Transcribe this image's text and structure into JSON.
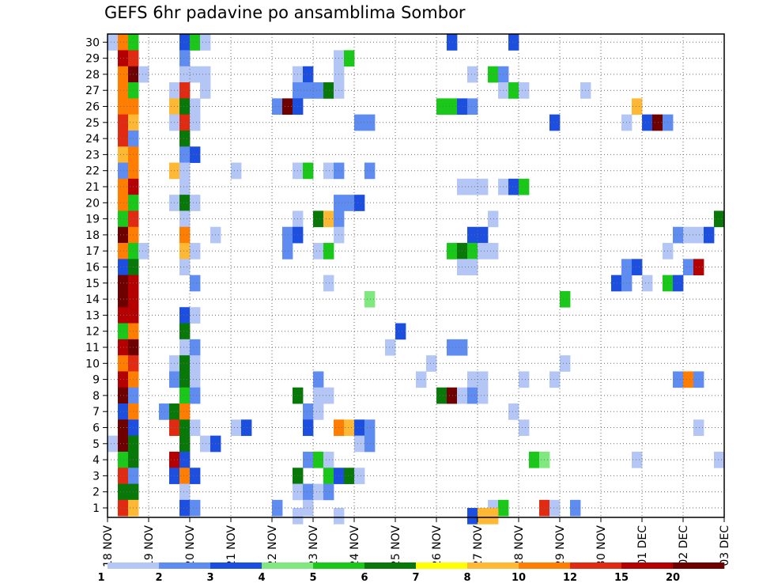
{
  "chart_data": {
    "type": "heatmap",
    "title": "GEFS 6hr padavine po ansamblima Sombor",
    "x_tick_labels": [
      "18 NOV",
      "19 NOV",
      "20 NOV",
      "21 NOV",
      "22 NOV",
      "23 NOV",
      "24 NOV",
      "25 NOV",
      "26 NOV",
      "27 NOV",
      "28 NOV",
      "29 NOV",
      "30 NOV",
      "01 DEC",
      "02 DEC",
      "03 DEC"
    ],
    "y_tick_labels": [
      "1",
      "2",
      "3",
      "4",
      "5",
      "6",
      "7",
      "8",
      "9",
      "10",
      "11",
      "12",
      "13",
      "14",
      "15",
      "16",
      "17",
      "18",
      "19",
      "20",
      "21",
      "22",
      "23",
      "24",
      "25",
      "26",
      "27",
      "28",
      "29",
      "30"
    ],
    "xlim": [
      0,
      60
    ],
    "ylim": [
      0,
      30
    ],
    "grid": true,
    "color_scale": {
      "labels": [
        "1",
        "2",
        "3",
        "4",
        "5",
        "6",
        "7",
        "8",
        "10",
        "12",
        "15",
        "20"
      ],
      "colors": [
        "#b3c6f5",
        "#5f8cf0",
        "#1c4fe0",
        "#7fe87f",
        "#19c819",
        "#087808",
        "#ffff00",
        "#ffb833",
        "#ff7d00",
        "#e02a12",
        "#b40000",
        "#6e0000"
      ]
    },
    "cells": [
      [
        0,
        30,
        1
      ],
      [
        1,
        30,
        10
      ],
      [
        2,
        30,
        5
      ],
      [
        7,
        30,
        3
      ],
      [
        8,
        30,
        5
      ],
      [
        9,
        30,
        1
      ],
      [
        33,
        30,
        3
      ],
      [
        39,
        30,
        3
      ],
      [
        1,
        29,
        15
      ],
      [
        2,
        29,
        12
      ],
      [
        7,
        29,
        2
      ],
      [
        22,
        29,
        1
      ],
      [
        23,
        29,
        5
      ],
      [
        1,
        28,
        10
      ],
      [
        2,
        28,
        20
      ],
      [
        3,
        28,
        1
      ],
      [
        7,
        28,
        1
      ],
      [
        8,
        28,
        1
      ],
      [
        9,
        28,
        1
      ],
      [
        18,
        28,
        1
      ],
      [
        19,
        28,
        3
      ],
      [
        22,
        28,
        1
      ],
      [
        35,
        28,
        1
      ],
      [
        37,
        28,
        5
      ],
      [
        38,
        28,
        2
      ],
      [
        1,
        27,
        10
      ],
      [
        2,
        27,
        5
      ],
      [
        6,
        27,
        1
      ],
      [
        7,
        27,
        12
      ],
      [
        9,
        27,
        1
      ],
      [
        18,
        27,
        2
      ],
      [
        19,
        27,
        2
      ],
      [
        20,
        27,
        2
      ],
      [
        21,
        27,
        6
      ],
      [
        22,
        27,
        1
      ],
      [
        38,
        27,
        1
      ],
      [
        39,
        27,
        5
      ],
      [
        40,
        27,
        1
      ],
      [
        46,
        27,
        1
      ],
      [
        1,
        26,
        10
      ],
      [
        2,
        26,
        10
      ],
      [
        6,
        26,
        8
      ],
      [
        7,
        26,
        6
      ],
      [
        8,
        26,
        1
      ],
      [
        16,
        26,
        2
      ],
      [
        17,
        26,
        20
      ],
      [
        18,
        26,
        3
      ],
      [
        32,
        26,
        5
      ],
      [
        33,
        26,
        5
      ],
      [
        34,
        26,
        3
      ],
      [
        35,
        26,
        2
      ],
      [
        51,
        26,
        8
      ],
      [
        1,
        25,
        12
      ],
      [
        2,
        25,
        8
      ],
      [
        6,
        25,
        1
      ],
      [
        7,
        25,
        12
      ],
      [
        8,
        25,
        1
      ],
      [
        24,
        25,
        2
      ],
      [
        25,
        25,
        2
      ],
      [
        43,
        25,
        3
      ],
      [
        50,
        25,
        1
      ],
      [
        52,
        25,
        3
      ],
      [
        53,
        25,
        20
      ],
      [
        54,
        25,
        2
      ],
      [
        1,
        24,
        12
      ],
      [
        2,
        24,
        2
      ],
      [
        7,
        24,
        6
      ],
      [
        1,
        23,
        8
      ],
      [
        2,
        23,
        10
      ],
      [
        7,
        23,
        2
      ],
      [
        8,
        23,
        3
      ],
      [
        1,
        22,
        2
      ],
      [
        2,
        22,
        10
      ],
      [
        6,
        22,
        8
      ],
      [
        7,
        22,
        1
      ],
      [
        12,
        22,
        1
      ],
      [
        18,
        22,
        1
      ],
      [
        19,
        22,
        5
      ],
      [
        21,
        22,
        1
      ],
      [
        22,
        22,
        2
      ],
      [
        25,
        22,
        2
      ],
      [
        1,
        21,
        10
      ],
      [
        2,
        21,
        15
      ],
      [
        7,
        21,
        1
      ],
      [
        34,
        21,
        1
      ],
      [
        35,
        21,
        1
      ],
      [
        36,
        21,
        1
      ],
      [
        38,
        21,
        1
      ],
      [
        39,
        21,
        3
      ],
      [
        40,
        21,
        5
      ],
      [
        1,
        20,
        10
      ],
      [
        2,
        20,
        5
      ],
      [
        6,
        20,
        1
      ],
      [
        7,
        20,
        6
      ],
      [
        8,
        20,
        1
      ],
      [
        22,
        20,
        2
      ],
      [
        23,
        20,
        2
      ],
      [
        24,
        20,
        3
      ],
      [
        1,
        19,
        5
      ],
      [
        2,
        19,
        12
      ],
      [
        7,
        19,
        1
      ],
      [
        18,
        19,
        1
      ],
      [
        20,
        19,
        6
      ],
      [
        21,
        19,
        8
      ],
      [
        22,
        19,
        2
      ],
      [
        37,
        19,
        1
      ],
      [
        59,
        19,
        6
      ],
      [
        1,
        18,
        20
      ],
      [
        2,
        18,
        10
      ],
      [
        7,
        18,
        10
      ],
      [
        10,
        18,
        1
      ],
      [
        17,
        18,
        2
      ],
      [
        18,
        18,
        3
      ],
      [
        22,
        18,
        1
      ],
      [
        35,
        18,
        3
      ],
      [
        36,
        18,
        3
      ],
      [
        55,
        18,
        2
      ],
      [
        56,
        18,
        1
      ],
      [
        57,
        18,
        1
      ],
      [
        58,
        18,
        3
      ],
      [
        1,
        17,
        10
      ],
      [
        2,
        17,
        5
      ],
      [
        3,
        17,
        1
      ],
      [
        7,
        17,
        8
      ],
      [
        8,
        17,
        1
      ],
      [
        17,
        17,
        2
      ],
      [
        20,
        17,
        1
      ],
      [
        21,
        17,
        5
      ],
      [
        33,
        17,
        5
      ],
      [
        34,
        17,
        6
      ],
      [
        35,
        17,
        5
      ],
      [
        36,
        17,
        1
      ],
      [
        37,
        17,
        1
      ],
      [
        54,
        17,
        1
      ],
      [
        1,
        16,
        3
      ],
      [
        2,
        16,
        6
      ],
      [
        7,
        16,
        1
      ],
      [
        34,
        16,
        1
      ],
      [
        35,
        16,
        1
      ],
      [
        50,
        16,
        2
      ],
      [
        51,
        16,
        3
      ],
      [
        56,
        16,
        2
      ],
      [
        57,
        16,
        15
      ],
      [
        1,
        15,
        20
      ],
      [
        2,
        15,
        15
      ],
      [
        8,
        15,
        2
      ],
      [
        21,
        15,
        1
      ],
      [
        49,
        15,
        3
      ],
      [
        50,
        15,
        2
      ],
      [
        52,
        15,
        1
      ],
      [
        54,
        15,
        5
      ],
      [
        55,
        15,
        3
      ],
      [
        1,
        14,
        20
      ],
      [
        2,
        14,
        15
      ],
      [
        25,
        14,
        4
      ],
      [
        44,
        14,
        5
      ],
      [
        1,
        13,
        15
      ],
      [
        2,
        13,
        15
      ],
      [
        7,
        13,
        3
      ],
      [
        8,
        13,
        1
      ],
      [
        1,
        12,
        5
      ],
      [
        2,
        12,
        10
      ],
      [
        7,
        12,
        6
      ],
      [
        28,
        12,
        3
      ],
      [
        1,
        11,
        15
      ],
      [
        2,
        11,
        20
      ],
      [
        7,
        11,
        1
      ],
      [
        8,
        11,
        2
      ],
      [
        27,
        11,
        1
      ],
      [
        33,
        11,
        2
      ],
      [
        34,
        11,
        2
      ],
      [
        1,
        10,
        10
      ],
      [
        2,
        10,
        12
      ],
      [
        6,
        10,
        1
      ],
      [
        7,
        10,
        6
      ],
      [
        8,
        10,
        1
      ],
      [
        31,
        10,
        1
      ],
      [
        44,
        10,
        1
      ],
      [
        1,
        9,
        15
      ],
      [
        2,
        9,
        10
      ],
      [
        6,
        9,
        2
      ],
      [
        7,
        9,
        6
      ],
      [
        8,
        9,
        1
      ],
      [
        20,
        9,
        2
      ],
      [
        30,
        9,
        1
      ],
      [
        35,
        9,
        1
      ],
      [
        36,
        9,
        1
      ],
      [
        40,
        9,
        1
      ],
      [
        43,
        9,
        1
      ],
      [
        55,
        9,
        2
      ],
      [
        56,
        9,
        10
      ],
      [
        57,
        9,
        2
      ],
      [
        1,
        8,
        20
      ],
      [
        2,
        8,
        2
      ],
      [
        7,
        8,
        5
      ],
      [
        8,
        8,
        2
      ],
      [
        18,
        8,
        6
      ],
      [
        20,
        8,
        1
      ],
      [
        21,
        8,
        1
      ],
      [
        32,
        8,
        6
      ],
      [
        33,
        8,
        20
      ],
      [
        34,
        8,
        1
      ],
      [
        35,
        8,
        2
      ],
      [
        36,
        8,
        1
      ],
      [
        1,
        7,
        3
      ],
      [
        2,
        7,
        10
      ],
      [
        5,
        7,
        2
      ],
      [
        6,
        7,
        6
      ],
      [
        7,
        7,
        10
      ],
      [
        19,
        7,
        2
      ],
      [
        20,
        7,
        1
      ],
      [
        39,
        7,
        1
      ],
      [
        1,
        6,
        20
      ],
      [
        2,
        6,
        3
      ],
      [
        6,
        6,
        12
      ],
      [
        7,
        6,
        6
      ],
      [
        8,
        6,
        1
      ],
      [
        12,
        6,
        1
      ],
      [
        13,
        6,
        3
      ],
      [
        19,
        6,
        3
      ],
      [
        22,
        6,
        10
      ],
      [
        23,
        6,
        8
      ],
      [
        24,
        6,
        3
      ],
      [
        25,
        6,
        2
      ],
      [
        40,
        6,
        1
      ],
      [
        57,
        6,
        1
      ],
      [
        0,
        5,
        1
      ],
      [
        1,
        5,
        20
      ],
      [
        2,
        5,
        6
      ],
      [
        7,
        5,
        6
      ],
      [
        9,
        5,
        1
      ],
      [
        10,
        5,
        3
      ],
      [
        24,
        5,
        1
      ],
      [
        25,
        5,
        2
      ],
      [
        1,
        4,
        5
      ],
      [
        2,
        4,
        6
      ],
      [
        6,
        4,
        15
      ],
      [
        7,
        4,
        3
      ],
      [
        19,
        4,
        2
      ],
      [
        20,
        4,
        5
      ],
      [
        21,
        4,
        1
      ],
      [
        41,
        4,
        5
      ],
      [
        42,
        4,
        4
      ],
      [
        51,
        4,
        1
      ],
      [
        59,
        4,
        1
      ],
      [
        1,
        3,
        12
      ],
      [
        2,
        3,
        2
      ],
      [
        6,
        3,
        3
      ],
      [
        7,
        3,
        10
      ],
      [
        8,
        3,
        3
      ],
      [
        18,
        3,
        6
      ],
      [
        21,
        3,
        5
      ],
      [
        22,
        3,
        3
      ],
      [
        23,
        3,
        6
      ],
      [
        24,
        3,
        1
      ],
      [
        1,
        2,
        6
      ],
      [
        2,
        2,
        6
      ],
      [
        7,
        2,
        1
      ],
      [
        18,
        2,
        1
      ],
      [
        19,
        2,
        2
      ],
      [
        20,
        2,
        1
      ],
      [
        21,
        2,
        2
      ],
      [
        1,
        1,
        12
      ],
      [
        2,
        1,
        8
      ],
      [
        7,
        1,
        3
      ],
      [
        8,
        1,
        2
      ],
      [
        16,
        1,
        2
      ],
      [
        19,
        1,
        1
      ],
      [
        37,
        1,
        1
      ],
      [
        38,
        1,
        5
      ],
      [
        42,
        1,
        12
      ],
      [
        43,
        1,
        1
      ],
      [
        45,
        1,
        2
      ],
      [
        18,
        0.5,
        1
      ],
      [
        22,
        0.5,
        1
      ],
      [
        35,
        0.5,
        3
      ],
      [
        36,
        0.5,
        8
      ],
      [
        37,
        0.5,
        8
      ]
    ]
  }
}
